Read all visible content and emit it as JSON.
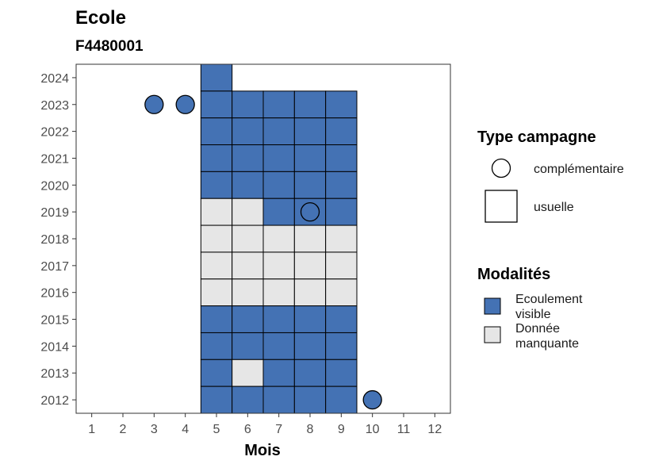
{
  "chart_data": {
    "type": "heatmap",
    "title": "Ecole",
    "subtitle": "F4480001",
    "xlabel": "Mois",
    "ylabel": "",
    "x_ticks": [
      "1",
      "2",
      "3",
      "4",
      "5",
      "6",
      "7",
      "8",
      "9",
      "10",
      "11",
      "12"
    ],
    "y_ticks": [
      "2012",
      "2013",
      "2014",
      "2015",
      "2016",
      "2017",
      "2018",
      "2019",
      "2020",
      "2021",
      "2022",
      "2023",
      "2024"
    ],
    "xlim": [
      0.5,
      12.5
    ],
    "ylim": [
      2011.5,
      2024.5
    ],
    "grid": false,
    "colors": {
      "ecoulement_visible": "#4472b4",
      "donnee_manquante": "#e6e6e6",
      "outline": "#000000",
      "panel_border": "#333333"
    },
    "legend_type": {
      "title": "Type campagne",
      "items": [
        {
          "label": "complémentaire",
          "shape": "circle"
        },
        {
          "label": "usuelle",
          "shape": "square"
        }
      ]
    },
    "legend_modalites": {
      "title": "Modalités",
      "items": [
        {
          "label_line1": "Ecoulement",
          "label_line2": "visible",
          "key": "ecoulement_visible"
        },
        {
          "label_line1": "Donnée",
          "label_line2": "manquante",
          "key": "donnee_manquante"
        }
      ]
    },
    "points": [
      {
        "month": 5,
        "year": 2024,
        "type": "usuelle",
        "modalite": "ecoulement_visible"
      },
      {
        "month": 3,
        "year": 2023,
        "type": "complementaire",
        "modalite": "ecoulement_visible"
      },
      {
        "month": 4,
        "year": 2023,
        "type": "complementaire",
        "modalite": "ecoulement_visible"
      },
      {
        "month": 5,
        "year": 2023,
        "type": "usuelle",
        "modalite": "ecoulement_visible"
      },
      {
        "month": 6,
        "year": 2023,
        "type": "usuelle",
        "modalite": "ecoulement_visible"
      },
      {
        "month": 7,
        "year": 2023,
        "type": "usuelle",
        "modalite": "ecoulement_visible"
      },
      {
        "month": 8,
        "year": 2023,
        "type": "usuelle",
        "modalite": "ecoulement_visible"
      },
      {
        "month": 9,
        "year": 2023,
        "type": "usuelle",
        "modalite": "ecoulement_visible"
      },
      {
        "month": 5,
        "year": 2022,
        "type": "usuelle",
        "modalite": "ecoulement_visible"
      },
      {
        "month": 6,
        "year": 2022,
        "type": "usuelle",
        "modalite": "ecoulement_visible"
      },
      {
        "month": 7,
        "year": 2022,
        "type": "usuelle",
        "modalite": "ecoulement_visible"
      },
      {
        "month": 8,
        "year": 2022,
        "type": "usuelle",
        "modalite": "ecoulement_visible"
      },
      {
        "month": 9,
        "year": 2022,
        "type": "usuelle",
        "modalite": "ecoulement_visible"
      },
      {
        "month": 5,
        "year": 2021,
        "type": "usuelle",
        "modalite": "ecoulement_visible"
      },
      {
        "month": 6,
        "year": 2021,
        "type": "usuelle",
        "modalite": "ecoulement_visible"
      },
      {
        "month": 7,
        "year": 2021,
        "type": "usuelle",
        "modalite": "ecoulement_visible"
      },
      {
        "month": 8,
        "year": 2021,
        "type": "usuelle",
        "modalite": "ecoulement_visible"
      },
      {
        "month": 9,
        "year": 2021,
        "type": "usuelle",
        "modalite": "ecoulement_visible"
      },
      {
        "month": 5,
        "year": 2020,
        "type": "usuelle",
        "modalite": "ecoulement_visible"
      },
      {
        "month": 6,
        "year": 2020,
        "type": "usuelle",
        "modalite": "ecoulement_visible"
      },
      {
        "month": 7,
        "year": 2020,
        "type": "usuelle",
        "modalite": "ecoulement_visible"
      },
      {
        "month": 8,
        "year": 2020,
        "type": "usuelle",
        "modalite": "ecoulement_visible"
      },
      {
        "month": 9,
        "year": 2020,
        "type": "usuelle",
        "modalite": "ecoulement_visible"
      },
      {
        "month": 5,
        "year": 2019,
        "type": "usuelle",
        "modalite": "donnee_manquante"
      },
      {
        "month": 6,
        "year": 2019,
        "type": "usuelle",
        "modalite": "donnee_manquante"
      },
      {
        "month": 7,
        "year": 2019,
        "type": "usuelle",
        "modalite": "ecoulement_visible"
      },
      {
        "month": 8,
        "year": 2019,
        "type": "usuelle",
        "modalite": "ecoulement_visible"
      },
      {
        "month": 8,
        "year": 2019,
        "type": "complementaire",
        "modalite": "ecoulement_visible"
      },
      {
        "month": 9,
        "year": 2019,
        "type": "usuelle",
        "modalite": "ecoulement_visible"
      },
      {
        "month": 5,
        "year": 2018,
        "type": "usuelle",
        "modalite": "donnee_manquante"
      },
      {
        "month": 6,
        "year": 2018,
        "type": "usuelle",
        "modalite": "donnee_manquante"
      },
      {
        "month": 7,
        "year": 2018,
        "type": "usuelle",
        "modalite": "donnee_manquante"
      },
      {
        "month": 8,
        "year": 2018,
        "type": "usuelle",
        "modalite": "donnee_manquante"
      },
      {
        "month": 9,
        "year": 2018,
        "type": "usuelle",
        "modalite": "donnee_manquante"
      },
      {
        "month": 5,
        "year": 2017,
        "type": "usuelle",
        "modalite": "donnee_manquante"
      },
      {
        "month": 6,
        "year": 2017,
        "type": "usuelle",
        "modalite": "donnee_manquante"
      },
      {
        "month": 7,
        "year": 2017,
        "type": "usuelle",
        "modalite": "donnee_manquante"
      },
      {
        "month": 8,
        "year": 2017,
        "type": "usuelle",
        "modalite": "donnee_manquante"
      },
      {
        "month": 9,
        "year": 2017,
        "type": "usuelle",
        "modalite": "donnee_manquante"
      },
      {
        "month": 5,
        "year": 2016,
        "type": "usuelle",
        "modalite": "donnee_manquante"
      },
      {
        "month": 6,
        "year": 2016,
        "type": "usuelle",
        "modalite": "donnee_manquante"
      },
      {
        "month": 7,
        "year": 2016,
        "type": "usuelle",
        "modalite": "donnee_manquante"
      },
      {
        "month": 8,
        "year": 2016,
        "type": "usuelle",
        "modalite": "donnee_manquante"
      },
      {
        "month": 9,
        "year": 2016,
        "type": "usuelle",
        "modalite": "donnee_manquante"
      },
      {
        "month": 5,
        "year": 2015,
        "type": "usuelle",
        "modalite": "ecoulement_visible"
      },
      {
        "month": 6,
        "year": 2015,
        "type": "usuelle",
        "modalite": "ecoulement_visible"
      },
      {
        "month": 7,
        "year": 2015,
        "type": "usuelle",
        "modalite": "ecoulement_visible"
      },
      {
        "month": 8,
        "year": 2015,
        "type": "usuelle",
        "modalite": "ecoulement_visible"
      },
      {
        "month": 9,
        "year": 2015,
        "type": "usuelle",
        "modalite": "ecoulement_visible"
      },
      {
        "month": 5,
        "year": 2014,
        "type": "usuelle",
        "modalite": "ecoulement_visible"
      },
      {
        "month": 6,
        "year": 2014,
        "type": "usuelle",
        "modalite": "ecoulement_visible"
      },
      {
        "month": 7,
        "year": 2014,
        "type": "usuelle",
        "modalite": "ecoulement_visible"
      },
      {
        "month": 8,
        "year": 2014,
        "type": "usuelle",
        "modalite": "ecoulement_visible"
      },
      {
        "month": 9,
        "year": 2014,
        "type": "usuelle",
        "modalite": "ecoulement_visible"
      },
      {
        "month": 5,
        "year": 2013,
        "type": "usuelle",
        "modalite": "ecoulement_visible"
      },
      {
        "month": 6,
        "year": 2013,
        "type": "usuelle",
        "modalite": "donnee_manquante"
      },
      {
        "month": 7,
        "year": 2013,
        "type": "usuelle",
        "modalite": "ecoulement_visible"
      },
      {
        "month": 8,
        "year": 2013,
        "type": "usuelle",
        "modalite": "ecoulement_visible"
      },
      {
        "month": 9,
        "year": 2013,
        "type": "usuelle",
        "modalite": "ecoulement_visible"
      },
      {
        "month": 5,
        "year": 2012,
        "type": "usuelle",
        "modalite": "ecoulement_visible"
      },
      {
        "month": 6,
        "year": 2012,
        "type": "usuelle",
        "modalite": "ecoulement_visible"
      },
      {
        "month": 7,
        "year": 2012,
        "type": "usuelle",
        "modalite": "ecoulement_visible"
      },
      {
        "month": 8,
        "year": 2012,
        "type": "usuelle",
        "modalite": "ecoulement_visible"
      },
      {
        "month": 9,
        "year": 2012,
        "type": "usuelle",
        "modalite": "ecoulement_visible"
      },
      {
        "month": 10,
        "year": 2012,
        "type": "complementaire",
        "modalite": "ecoulement_visible"
      }
    ]
  }
}
